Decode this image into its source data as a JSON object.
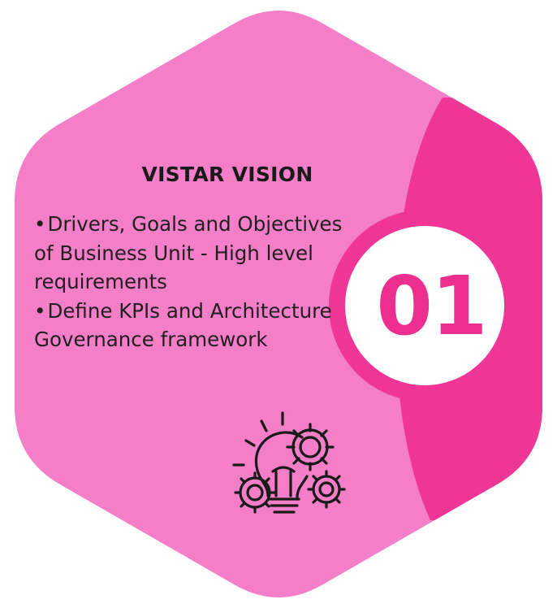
{
  "card": {
    "title": "VISTAR VISION",
    "number": "01",
    "bullets": [
      {
        "marker": "•",
        "text": "Drivers, Goals and Objectives of Business Unit - High level requirements"
      },
      {
        "marker": "•",
        "text": "Define KPIs and Architecture Governance framework"
      }
    ],
    "icon": "lightbulb-gears-icon"
  },
  "colors": {
    "hexagon_fill": "#f57ec8",
    "accent": "#ef3596",
    "number_text": "#ec2f8e",
    "circle_fill": "#ffffff",
    "text": "#1a1a1a"
  }
}
